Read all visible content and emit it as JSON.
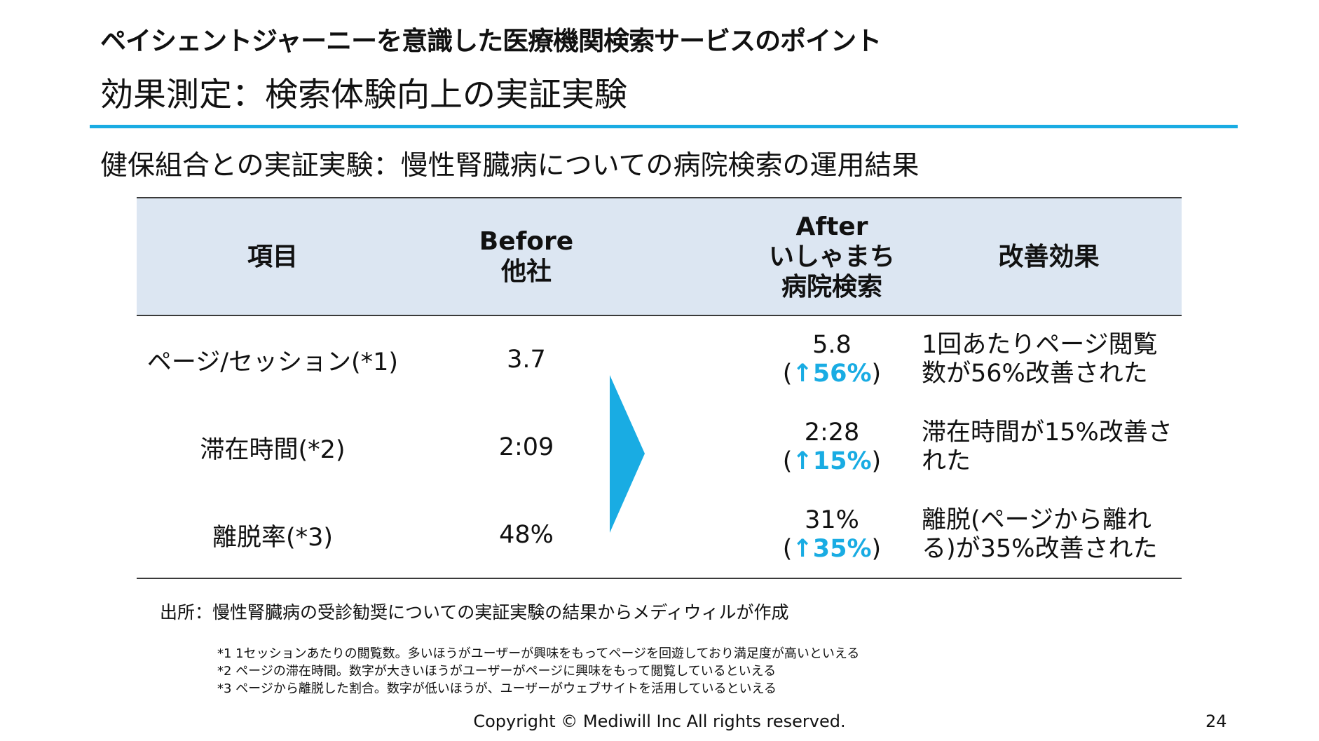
{
  "header": {
    "heading": "ペイシェントジャーニーを意識した医療機関検索サービスのポイント",
    "title": "効果測定：検索体験向上の実証実験",
    "accent_color": "#19ace3"
  },
  "subtitle": "健保組合との実証実験：慢性腎臓病についての病院検索の運用結果",
  "table": {
    "header_bg": "#dce6f2",
    "columns": {
      "item": "項目",
      "before": [
        "Before",
        "他社"
      ],
      "after": [
        "After",
        "いしゃまち",
        "病院検索"
      ],
      "effect": "改善効果"
    },
    "rows": [
      {
        "item": "ページ/セッション(*1)",
        "before": "3.7",
        "after_value": "5.8",
        "after_open": "(",
        "after_change": "↑56%",
        "after_close": ")",
        "effect": "1回あたりページ閲覧数が56%改善された"
      },
      {
        "item": "滞在時間(*2)",
        "before": "2:09",
        "after_value": "2:28",
        "after_open": "(",
        "after_change": "↑15%",
        "after_close": ")",
        "effect": "滞在時間が15%改善された"
      },
      {
        "item": "離脱率(*3)",
        "before": "48%",
        "after_value": "31%",
        "after_open": "(",
        "after_change": "↑35%",
        "after_close": ")",
        "effect": "離脱(ページから離れる)が35%改善された"
      }
    ]
  },
  "source": "出所：慢性腎臓病の受診勧奨についての実証実験の結果からメディウィルが作成",
  "notes": [
    "*1 1セッションあたりの閲覧数。多いほうがユーザーが興味をもってページを回遊しており満足度が高いといえる",
    "*2 ページの滞在時間。数字が大きいほうがユーザーがページに興味をもって閲覧しているといえる",
    "*3 ページから離脱した割合。数字が低いほうが、ユーザーがウェブサイトを活用しているといえる"
  ],
  "footer": {
    "copyright": "Copyright © Mediwill Inc All rights reserved.",
    "page_number": "24"
  },
  "icons": {
    "arrow": "chevron-right-arrow-icon"
  }
}
